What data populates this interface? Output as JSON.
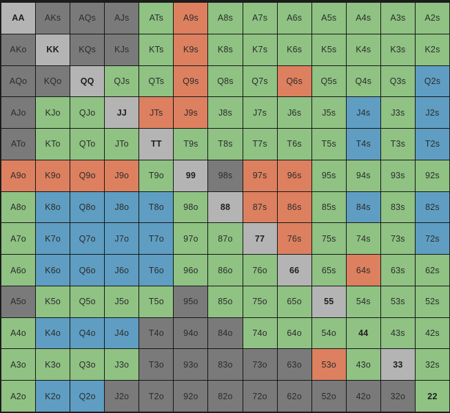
{
  "colors": {
    "fold": "#7a7a7a",
    "call": "#8fc283",
    "raise": "#dd8060",
    "allin": "#5f9ec2",
    "pair_bg": "#b4b4b4"
  },
  "grid": {
    "ranks": [
      "A",
      "K",
      "Q",
      "J",
      "T",
      "9",
      "8",
      "7",
      "6",
      "5",
      "4",
      "3",
      "2"
    ],
    "rows": [
      [
        {
          "label": "AA",
          "mix": [
            "fold",
            1
          ]
        },
        {
          "label": "AKs",
          "mix": [
            "fold",
            1
          ]
        },
        {
          "label": "AQs",
          "mix": [
            "fold",
            1
          ]
        },
        {
          "label": "AJs",
          "mix": [
            "fold",
            1
          ]
        },
        {
          "label": "ATs",
          "mix": [
            "call",
            1
          ]
        },
        {
          "label": "A9s",
          "mix": [
            "raise",
            1
          ]
        },
        {
          "label": "A8s",
          "mix": [
            "call",
            1
          ]
        },
        {
          "label": "A7s",
          "mix": [
            "call",
            1
          ]
        },
        {
          "label": "A6s",
          "mix": [
            "call",
            1
          ]
        },
        {
          "label": "A5s",
          "mix": [
            "call",
            1
          ]
        },
        {
          "label": "A4s",
          "mix": [
            "call",
            1
          ]
        },
        {
          "label": "A3s",
          "mix": [
            "call",
            1
          ]
        },
        {
          "label": "A2s",
          "mix": [
            "call",
            1
          ]
        }
      ],
      [
        {
          "label": "AKo",
          "mix": [
            "fold",
            1
          ]
        },
        {
          "label": "KK",
          "mix": [
            "fold",
            1
          ]
        },
        {
          "label": "KQs",
          "mix": [
            "fold",
            1
          ]
        },
        {
          "label": "KJs",
          "mix": [
            "fold",
            1
          ]
        },
        {
          "label": "KTs",
          "mix": [
            "call",
            1
          ]
        },
        {
          "label": "K9s",
          "mix": [
            "raise",
            1
          ]
        },
        {
          "label": "K8s",
          "mix": [
            "call",
            1
          ]
        },
        {
          "label": "K7s",
          "mix": [
            "call",
            1
          ]
        },
        {
          "label": "K6s",
          "mix": [
            "call",
            1
          ]
        },
        {
          "label": "K5s",
          "mix": [
            "call",
            1
          ]
        },
        {
          "label": "K4s",
          "mix": [
            "call",
            1
          ]
        },
        {
          "label": "K3s",
          "mix": [
            "call",
            1
          ]
        },
        {
          "label": "K2s",
          "mix": [
            "call",
            1
          ]
        }
      ],
      [
        {
          "label": "AQo",
          "mix": [
            "fold",
            1
          ]
        },
        {
          "label": "KQo",
          "mix": [
            "fold",
            1
          ]
        },
        {
          "label": "QQ",
          "mix": [
            "fold",
            1
          ]
        },
        {
          "label": "QJs",
          "mix": [
            "call",
            1
          ]
        },
        {
          "label": "QTs",
          "mix": [
            "call",
            1
          ]
        },
        {
          "label": "Q9s",
          "mix": [
            "raise",
            1
          ]
        },
        {
          "label": "Q8s",
          "mix": [
            "call",
            1
          ]
        },
        {
          "label": "Q7s",
          "mix": [
            "call",
            1
          ]
        },
        {
          "label": "Q6s",
          "mix": [
            "raise",
            1
          ]
        },
        {
          "label": "Q5s",
          "mix": [
            "call",
            1
          ]
        },
        {
          "label": "Q4s",
          "mix": [
            "call",
            1
          ]
        },
        {
          "label": "Q3s",
          "mix": [
            "call",
            1
          ]
        },
        {
          "label": "Q2s",
          "mix": [
            "allin",
            1
          ]
        }
      ],
      [
        {
          "label": "AJo",
          "mix": [
            "fold",
            1
          ]
        },
        {
          "label": "KJo",
          "mix": [
            "call",
            1
          ]
        },
        {
          "label": "QJo",
          "mix": [
            "call",
            1
          ]
        },
        {
          "label": "JJ",
          "mix": [
            "fold",
            1
          ]
        },
        {
          "label": "JTs",
          "mix": [
            "raise",
            1
          ]
        },
        {
          "label": "J9s",
          "mix": [
            "raise",
            1
          ]
        },
        {
          "label": "J8s",
          "mix": [
            "call",
            1
          ]
        },
        {
          "label": "J7s",
          "mix": [
            "call",
            1
          ]
        },
        {
          "label": "J6s",
          "mix": [
            "call",
            1
          ]
        },
        {
          "label": "J5s",
          "mix": [
            "call",
            1
          ]
        },
        {
          "label": "J4s",
          "mix": [
            "allin",
            1
          ]
        },
        {
          "label": "J3s",
          "mix": [
            "call",
            1
          ]
        },
        {
          "label": "J2s",
          "mix": [
            "allin",
            1
          ]
        }
      ],
      [
        {
          "label": "ATo",
          "mix": [
            "fold",
            1
          ]
        },
        {
          "label": "KTo",
          "mix": [
            "call",
            1
          ]
        },
        {
          "label": "QTo",
          "mix": [
            "call",
            1
          ]
        },
        {
          "label": "JTo",
          "mix": [
            "call",
            1
          ]
        },
        {
          "label": "TT",
          "mix": [
            "fold",
            1
          ]
        },
        {
          "label": "T9s",
          "mix": [
            "call",
            1
          ]
        },
        {
          "label": "T8s",
          "mix": [
            "call",
            1
          ]
        },
        {
          "label": "T7s",
          "mix": [
            "call",
            1
          ]
        },
        {
          "label": "T6s",
          "mix": [
            "call",
            1
          ]
        },
        {
          "label": "T5s",
          "mix": [
            "call",
            1
          ]
        },
        {
          "label": "T4s",
          "mix": [
            "allin",
            1
          ]
        },
        {
          "label": "T3s",
          "mix": [
            "call",
            1
          ]
        },
        {
          "label": "T2s",
          "mix": [
            "allin",
            1
          ]
        }
      ],
      [
        {
          "label": "A9o",
          "mix": [
            "raise",
            1
          ]
        },
        {
          "label": "K9o",
          "mix": [
            "raise",
            1
          ]
        },
        {
          "label": "Q9o",
          "mix": [
            "raise",
            1
          ]
        },
        {
          "label": "J9o",
          "mix": [
            "raise",
            1
          ]
        },
        {
          "label": "T9o",
          "mix": [
            "call",
            1
          ]
        },
        {
          "label": "99",
          "mix": [
            "fold",
            1
          ]
        },
        {
          "label": "98s",
          "mix": [
            "fold",
            1
          ]
        },
        {
          "label": "97s",
          "mix": [
            "raise",
            1
          ]
        },
        {
          "label": "96s",
          "mix": [
            "raise",
            1
          ]
        },
        {
          "label": "95s",
          "mix": [
            "call",
            1
          ]
        },
        {
          "label": "94s",
          "mix": [
            "call",
            1
          ]
        },
        {
          "label": "93s",
          "mix": [
            "call",
            1
          ]
        },
        {
          "label": "92s",
          "mix": [
            "call",
            1
          ]
        }
      ],
      [
        {
          "label": "A8o",
          "mix": [
            "call",
            1
          ]
        },
        {
          "label": "K8o",
          "mix": [
            "allin",
            1
          ]
        },
        {
          "label": "Q8o",
          "mix": [
            "allin",
            1
          ]
        },
        {
          "label": "J8o",
          "mix": [
            "allin",
            1
          ]
        },
        {
          "label": "T8o",
          "mix": [
            "allin",
            1
          ]
        },
        {
          "label": "98o",
          "mix": [
            "call",
            1
          ]
        },
        {
          "label": "88",
          "mix": [
            "fold",
            1
          ]
        },
        {
          "label": "87s",
          "mix": [
            "raise",
            1
          ]
        },
        {
          "label": "86s",
          "mix": [
            "raise",
            1
          ]
        },
        {
          "label": "85s",
          "mix": [
            "call",
            1
          ]
        },
        {
          "label": "84s",
          "mix": [
            "allin",
            1
          ]
        },
        {
          "label": "83s",
          "mix": [
            "call",
            1
          ]
        },
        {
          "label": "82s",
          "mix": [
            "allin",
            1
          ]
        }
      ],
      [
        {
          "label": "A7o",
          "mix": [
            "call",
            1
          ]
        },
        {
          "label": "K7o",
          "mix": [
            "allin",
            1
          ]
        },
        {
          "label": "Q7o",
          "mix": [
            "allin",
            1
          ]
        },
        {
          "label": "J7o",
          "mix": [
            "allin",
            1
          ]
        },
        {
          "label": "T7o",
          "mix": [
            "allin",
            1
          ]
        },
        {
          "label": "97o",
          "mix": [
            "call",
            1
          ]
        },
        {
          "label": "87o",
          "mix": [
            "call",
            1
          ]
        },
        {
          "label": "77",
          "mix": [
            "fold",
            1
          ]
        },
        {
          "label": "76s",
          "mix": [
            "raise",
            1
          ]
        },
        {
          "label": "75s",
          "mix": [
            "call",
            1
          ]
        },
        {
          "label": "74s",
          "mix": [
            "call",
            1
          ]
        },
        {
          "label": "73s",
          "mix": [
            "call",
            1
          ]
        },
        {
          "label": "72s",
          "mix": [
            "allin",
            1
          ]
        }
      ],
      [
        {
          "label": "A6o",
          "mix": [
            "call",
            1
          ]
        },
        {
          "label": "K6o",
          "mix": [
            "allin",
            1
          ]
        },
        {
          "label": "Q6o",
          "mix": [
            "allin",
            1
          ]
        },
        {
          "label": "J6o",
          "mix": [
            "allin",
            1
          ]
        },
        {
          "label": "T6o",
          "mix": [
            "allin",
            1
          ]
        },
        {
          "label": "96o",
          "mix": [
            "call",
            1
          ]
        },
        {
          "label": "86o",
          "mix": [
            "call",
            1
          ]
        },
        {
          "label": "76o",
          "mix": [
            "call",
            1
          ]
        },
        {
          "label": "66",
          "mix": [
            "fold",
            1
          ]
        },
        {
          "label": "65s",
          "mix": [
            "call",
            1
          ]
        },
        {
          "label": "64s",
          "mix": [
            "raise",
            1
          ]
        },
        {
          "label": "63s",
          "mix": [
            "call",
            1
          ]
        },
        {
          "label": "62s",
          "mix": [
            "call",
            1
          ]
        }
      ],
      [
        {
          "label": "A5o",
          "mix": [
            "fold",
            1
          ]
        },
        {
          "label": "K5o",
          "mix": [
            "call",
            1
          ]
        },
        {
          "label": "Q5o",
          "mix": [
            "call",
            1
          ]
        },
        {
          "label": "J5o",
          "mix": [
            "call",
            1
          ]
        },
        {
          "label": "T5o",
          "mix": [
            "call",
            1
          ]
        },
        {
          "label": "95o",
          "mix": [
            "fold",
            1
          ]
        },
        {
          "label": "85o",
          "mix": [
            "call",
            1
          ]
        },
        {
          "label": "75o",
          "mix": [
            "call",
            1
          ]
        },
        {
          "label": "65o",
          "mix": [
            "call",
            1
          ]
        },
        {
          "label": "55",
          "mix": [
            "fold",
            1
          ]
        },
        {
          "label": "54s",
          "mix": [
            "call",
            1
          ]
        },
        {
          "label": "53s",
          "mix": [
            "call",
            1
          ]
        },
        {
          "label": "52s",
          "mix": [
            "call",
            1
          ]
        }
      ],
      [
        {
          "label": "A4o",
          "mix": [
            "call",
            1
          ]
        },
        {
          "label": "K4o",
          "mix": [
            "allin",
            1
          ]
        },
        {
          "label": "Q4o",
          "mix": [
            "allin",
            1
          ]
        },
        {
          "label": "J4o",
          "mix": [
            "allin",
            1
          ]
        },
        {
          "label": "T4o",
          "mix": [
            "fold",
            1
          ]
        },
        {
          "label": "94o",
          "mix": [
            "fold",
            1
          ]
        },
        {
          "label": "84o",
          "mix": [
            "fold",
            1
          ]
        },
        {
          "label": "74o",
          "mix": [
            "call",
            1
          ]
        },
        {
          "label": "64o",
          "mix": [
            "call",
            1
          ]
        },
        {
          "label": "54o",
          "mix": [
            "call",
            1
          ]
        },
        {
          "label": "44",
          "mix": [
            "call",
            1
          ]
        },
        {
          "label": "43s",
          "mix": [
            "call",
            1
          ]
        },
        {
          "label": "42s",
          "mix": [
            "call",
            1
          ]
        }
      ],
      [
        {
          "label": "A3o",
          "mix": [
            "call",
            1
          ]
        },
        {
          "label": "K3o",
          "mix": [
            "call",
            1
          ]
        },
        {
          "label": "Q3o",
          "mix": [
            "call",
            1
          ]
        },
        {
          "label": "J3o",
          "mix": [
            "call",
            1
          ]
        },
        {
          "label": "T3o",
          "mix": [
            "fold",
            1
          ]
        },
        {
          "label": "93o",
          "mix": [
            "fold",
            1
          ]
        },
        {
          "label": "83o",
          "mix": [
            "fold",
            1
          ]
        },
        {
          "label": "73o",
          "mix": [
            "fold",
            1
          ]
        },
        {
          "label": "63o",
          "mix": [
            "fold",
            1
          ]
        },
        {
          "label": "53o",
          "mix": [
            "raise",
            1
          ]
        },
        {
          "label": "43o",
          "mix": [
            "call",
            1
          ]
        },
        {
          "label": "33",
          "mix": [
            "fold",
            1
          ]
        },
        {
          "label": "32s",
          "mix": [
            "call",
            1
          ]
        }
      ],
      [
        {
          "label": "A2o",
          "mix": [
            "call",
            1
          ]
        },
        {
          "label": "K2o",
          "mix": [
            "allin",
            1
          ]
        },
        {
          "label": "Q2o",
          "mix": [
            "allin",
            1
          ]
        },
        {
          "label": "J2o",
          "mix": [
            "fold",
            1
          ]
        },
        {
          "label": "T2o",
          "mix": [
            "fold",
            1
          ]
        },
        {
          "label": "92o",
          "mix": [
            "fold",
            1
          ]
        },
        {
          "label": "82o",
          "mix": [
            "fold",
            1
          ]
        },
        {
          "label": "72o",
          "mix": [
            "fold",
            1
          ]
        },
        {
          "label": "62o",
          "mix": [
            "fold",
            1
          ]
        },
        {
          "label": "52o",
          "mix": [
            "fold",
            1
          ]
        },
        {
          "label": "42o",
          "mix": [
            "fold",
            1
          ]
        },
        {
          "label": "32o",
          "mix": [
            "fold",
            1
          ]
        },
        {
          "label": "22",
          "mix": [
            "call",
            1
          ]
        }
      ]
    ]
  }
}
